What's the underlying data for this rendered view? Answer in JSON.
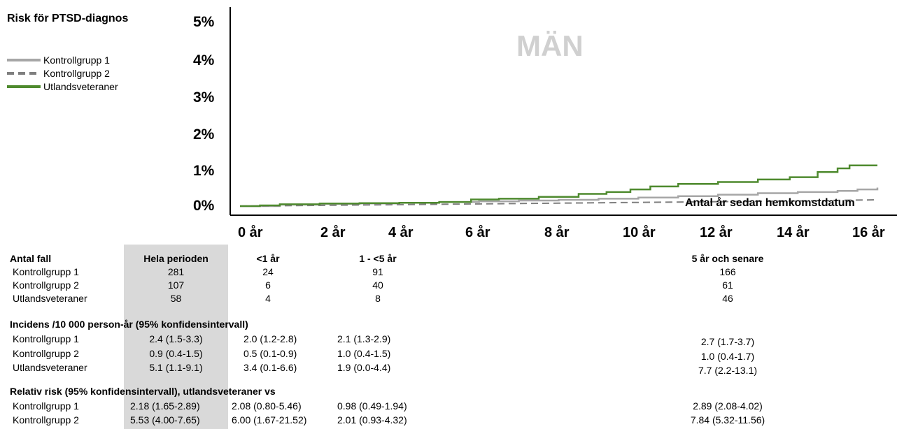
{
  "title": "Risk för PTSD-diagnos",
  "panel_label": "MÄN",
  "colors": {
    "kontroll1": "#a6a6a6",
    "kontroll2": "#7f7f7f",
    "veteraner": "#4e8a2e",
    "shade": "#d9d9d9"
  },
  "chart_data": {
    "type": "line",
    "title": "Risk för PTSD-diagnos",
    "xlabel": "Antal år sedan hemkomstdatum",
    "ylabel": "",
    "xlim": [
      0,
      16
    ],
    "ylim": [
      0,
      5
    ],
    "x_ticks": [
      "0 år",
      "2 år",
      "4 år",
      "6 år",
      "8 år",
      "10 år",
      "12 år",
      "14 år",
      "16 år"
    ],
    "y_ticks": [
      "0%",
      "1%",
      "2%",
      "3%",
      "4%",
      "5%"
    ],
    "legend_position": "top-left",
    "series": [
      {
        "name": "Kontrollgrupp 1",
        "style": "solid",
        "color": "#a6a6a6",
        "x": [
          0,
          1,
          2,
          3,
          4,
          5,
          6,
          7,
          8,
          9,
          10,
          11,
          12,
          13,
          14,
          15,
          15.5,
          16
        ],
        "y": [
          0,
          0.04,
          0.06,
          0.07,
          0.09,
          0.11,
          0.13,
          0.15,
          0.17,
          0.2,
          0.23,
          0.27,
          0.31,
          0.35,
          0.38,
          0.41,
          0.45,
          0.5
        ]
      },
      {
        "name": "Kontrollgrupp 2",
        "style": "dashed",
        "color": "#7f7f7f",
        "x": [
          0,
          2,
          4,
          6,
          8,
          10,
          12,
          14,
          16
        ],
        "y": [
          0,
          0.02,
          0.04,
          0.06,
          0.08,
          0.1,
          0.12,
          0.14,
          0.17
        ]
      },
      {
        "name": "Utlandsveteraner",
        "style": "solid",
        "color": "#4e8a2e",
        "x": [
          0,
          0.5,
          1,
          2,
          3,
          4,
          5,
          5.8,
          6.5,
          7.5,
          8.5,
          9.2,
          9.8,
          10.3,
          11,
          12,
          13,
          13.8,
          14.5,
          15,
          15.3,
          16
        ],
        "y": [
          0,
          0.02,
          0.05,
          0.07,
          0.08,
          0.09,
          0.11,
          0.18,
          0.2,
          0.25,
          0.33,
          0.38,
          0.45,
          0.53,
          0.6,
          0.65,
          0.72,
          0.78,
          0.92,
          1.02,
          1.1,
          1.1
        ]
      }
    ]
  },
  "table": {
    "headers": {
      "label": "Antal fall",
      "whole": "Hela perioden",
      "lt1": "<1 år",
      "r1to5": "1 - <5 år",
      "gte5": "5 år och senare"
    },
    "groups": [
      "Kontrollgrupp 1",
      "Kontrollgrupp 2",
      "Utlandsveteraner"
    ],
    "counts": [
      [
        "281",
        "24",
        "91",
        "166"
      ],
      [
        "107",
        "6",
        "40",
        "61"
      ],
      [
        "58",
        "4",
        "8",
        "46"
      ]
    ],
    "incidence_title": "Incidens /10 000 person-år (95% konfidensintervall)",
    "incidence": [
      [
        "2.4 (1.5-3.3)",
        "2.0 (1.2-2.8)",
        "2.1 (1.3-2.9)",
        "2.7 (1.7-3.7)"
      ],
      [
        "0.9 (0.4-1.5)",
        "0.5 (0.1-0.9)",
        "1.0 (0.4-1.5)",
        "1.0 (0.4-1.7)"
      ],
      [
        "5.1 (1.1-9.1)",
        "3.4 (0.1-6.6)",
        "1.9 (0.0-4.4)",
        "7.7 (2.2-13.1)"
      ]
    ],
    "rr_title": "Relativ risk (95% konfidensintervall), utlandsveteraner vs",
    "rr_groups": [
      "Kontrollgrupp 1",
      "Kontrollgrupp 2"
    ],
    "rr": [
      [
        "2.18 (1.65-2.89)",
        "2.08 (0.80-5.46)",
        "0.98 (0.49-1.94)",
        "2.89 (2.08-4.02)"
      ],
      [
        "5.53 (4.00-7.65)",
        "6.00 (1.67-21.52)",
        "2.01 (0.93-4.32)",
        "7.84 (5.32-11.56)"
      ]
    ]
  }
}
